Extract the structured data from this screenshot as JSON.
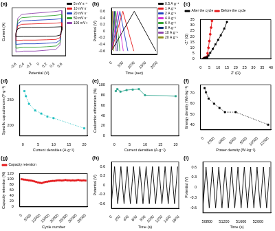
{
  "chart_data": [
    {
      "type": "line",
      "title": "(a)",
      "x_label": "Potential (V)",
      "y_label": "Current (A)",
      "x": [
        -0.6,
        -0.55,
        -0.45,
        -0.2,
        0.1,
        0.4,
        0.6,
        0.6,
        0.55,
        0.45,
        0.2,
        -0.1,
        -0.4,
        -0.6,
        -0.6
      ],
      "series": [
        {
          "name": "5 mV s⁻¹",
          "color": "#000000",
          "values": [
            -0.05,
            0.18,
            0.23,
            0.24,
            0.25,
            0.26,
            0.28,
            0.08,
            -0.18,
            -0.23,
            -0.24,
            -0.25,
            -0.25,
            -0.26,
            -0.05
          ]
        },
        {
          "name": "10 mV s⁻¹",
          "color": "#e41a1c",
          "values": [
            -0.09,
            0.32,
            0.41,
            0.43,
            0.45,
            0.47,
            0.5,
            0.14,
            -0.32,
            -0.41,
            -0.43,
            -0.45,
            -0.45,
            -0.47,
            -0.09
          ]
        },
        {
          "name": "20 mV s⁻¹",
          "color": "#1f3fbf",
          "values": [
            -0.13,
            0.46,
            0.59,
            0.62,
            0.65,
            0.68,
            0.72,
            0.2,
            -0.46,
            -0.59,
            -0.62,
            -0.65,
            -0.65,
            -0.68,
            -0.13
          ]
        },
        {
          "name": "50 mV s⁻¹",
          "color": "#2ca02c",
          "values": [
            -0.17,
            0.6,
            0.77,
            0.81,
            0.85,
            0.89,
            0.94,
            0.26,
            -0.6,
            -0.77,
            -0.81,
            -0.85,
            -0.85,
            -0.89,
            -0.17
          ]
        },
        {
          "name": "100 mV s⁻¹",
          "color": "#8e44ad",
          "values": [
            -0.21,
            0.74,
            0.95,
            1.0,
            1.05,
            1.1,
            1.16,
            0.32,
            -0.74,
            -0.95,
            -1.0,
            -1.05,
            -1.05,
            -1.1,
            -0.21
          ]
        }
      ],
      "xlim": [
        -0.7,
        0.7
      ],
      "xticks": [
        -0.6,
        -0.4,
        -0.2,
        0,
        0.2,
        0.4,
        0.6
      ],
      "ylim": [
        -1.3,
        1.3
      ],
      "tick_labels": "x",
      "grid": false,
      "legend": "right",
      "line_style": "solid"
    },
    {
      "type": "line",
      "title": "(b)",
      "x_label": "Time (sec)",
      "y_label": "Potential (V)",
      "series": [
        {
          "name": "0.5 A g⁻¹",
          "color": "#000000",
          "x": [
            0,
            1000,
            1950
          ],
          "values": [
            -0.6,
            0.6,
            -0.6
          ]
        },
        {
          "name": "1 A g⁻¹",
          "color": "#e41a1c",
          "x": [
            0,
            500,
            980
          ],
          "values": [
            -0.6,
            0.6,
            -0.6
          ]
        },
        {
          "name": "2 A g⁻¹",
          "color": "#1f3fbf",
          "x": [
            0,
            370,
            720
          ],
          "values": [
            -0.6,
            0.6,
            -0.6
          ]
        },
        {
          "name": "4 A g⁻¹",
          "color": "#d62fd6",
          "x": [
            0,
            270,
            520
          ],
          "values": [
            -0.6,
            0.6,
            -0.6
          ]
        },
        {
          "name": "6 A g⁻¹",
          "color": "#2ca02c",
          "x": [
            0,
            190,
            370
          ],
          "values": [
            -0.6,
            0.6,
            -0.6
          ]
        },
        {
          "name": "8 A g⁻¹",
          "color": "#0b2a6f",
          "x": [
            0,
            140,
            270
          ],
          "values": [
            -0.6,
            0.6,
            -0.6
          ]
        },
        {
          "name": "10 A g⁻¹",
          "color": "#8e44ad",
          "x": [
            0,
            110,
            210
          ],
          "values": [
            -0.6,
            0.6,
            -0.6
          ]
        },
        {
          "name": "20 A g⁻¹",
          "color": "#8c8c1a",
          "x": [
            0,
            50,
            95
          ],
          "values": [
            -0.6,
            0.6,
            -0.6
          ]
        }
      ],
      "xlim": [
        0,
        2000
      ],
      "xticks": [
        0,
        500,
        1000,
        1500,
        2000
      ],
      "ylim": [
        -0.7,
        0.7
      ],
      "yticks": [
        -0.6,
        -0.4,
        -0.2,
        0,
        0.2,
        0.4,
        0.6
      ],
      "grid": false,
      "legend": "right",
      "line_style": "solid"
    },
    {
      "type": "line",
      "title": "(c)",
      "x_label": "Z' (Ω)",
      "y_label": "-Z'' (Ω)",
      "series": [
        {
          "name": "After the cycle",
          "color": "#000000",
          "marker": "square",
          "x": [
            1.5,
            2.1,
            2.8,
            3.3,
            3.8,
            4.5,
            5.5,
            7,
            8.5,
            10,
            11.5,
            13.5,
            15
          ],
          "values": [
            0.1,
            0.9,
            1.1,
            1.0,
            1.5,
            3,
            5.5,
            9,
            13,
            17,
            21,
            27,
            33
          ]
        },
        {
          "name": "Before the cycle",
          "color": "#e41a1c",
          "marker": "circle",
          "x": [
            1.5,
            2.0,
            2.6,
            3.0,
            3.3,
            3.6,
            4.0,
            4.5,
            5.0,
            5.5,
            6.0,
            6.5
          ],
          "values": [
            0.1,
            0.8,
            1.0,
            0.8,
            1.0,
            2,
            5,
            10,
            16,
            22,
            28,
            34
          ]
        }
      ],
      "xlim": [
        0,
        40
      ],
      "xticks": [
        0,
        5,
        10,
        15,
        20,
        25,
        30,
        35,
        40
      ],
      "ylim": [
        0,
        35
      ],
      "yticks": [
        0,
        5,
        10,
        15,
        20,
        25,
        30,
        35
      ],
      "grid": false,
      "legend": "top",
      "line_style": "solid"
    },
    {
      "type": "line",
      "title": "(d)",
      "x_label": "Current densities (A·g⁻¹)",
      "y_label": "Specific capacitances (F·g⁻¹)",
      "x": [
        0.5,
        1,
        2,
        4,
        6,
        8,
        10,
        20
      ],
      "series": [
        {
          "color": "#1fbfbf",
          "marker": "square",
          "line_style": "dotted",
          "values": [
            268,
            258,
            243,
            230,
            224,
            218,
            215,
            195
          ]
        }
      ],
      "xlim": [
        -1,
        21
      ],
      "xticks": [
        0,
        5,
        10,
        15,
        20
      ],
      "ylim": [
        180,
        280
      ],
      "yticks": [
        200,
        250
      ],
      "grid": false
    },
    {
      "type": "line",
      "title": "(e)",
      "x_label": "Current densities (A·g⁻¹)",
      "y_label": "Coulombic efficiencies (%)",
      "x": [
        0.5,
        1,
        2,
        4,
        6,
        8,
        10,
        20
      ],
      "series": [
        {
          "color": "#2ca58d",
          "marker": "square",
          "line_style": "solid",
          "values": [
            88,
            92,
            87,
            90,
            91,
            92,
            80,
            78
          ]
        }
      ],
      "xlim": [
        -1,
        21
      ],
      "xticks": [
        0,
        5,
        10,
        15,
        20
      ],
      "ylim": [
        0,
        100
      ],
      "yticks": [
        0,
        20,
        40,
        60,
        80,
        100
      ],
      "grid": false
    },
    {
      "type": "line",
      "title": "(f)",
      "x_label": "Power density (W·kg⁻¹)",
      "y_label": "Energy density (Wh·kg⁻¹)",
      "x": [
        250,
        500,
        1000,
        2000,
        3000,
        4000,
        6000,
        12000
      ],
      "series": [
        {
          "color": "#000000",
          "marker": "square",
          "line_style": "dotted",
          "values": [
            75,
            71,
            65,
            60,
            56,
            52,
            52,
            40
          ]
        }
      ],
      "xlim": [
        -500,
        12500
      ],
      "xticks": [
        0,
        2000,
        4000,
        6000,
        8000,
        10000,
        12000
      ],
      "ylim": [
        35,
        78
      ],
      "yticks": [
        40,
        50,
        60,
        70
      ],
      "grid": false
    },
    {
      "type": "line",
      "title": "(g)",
      "x_label": "Cycle number",
      "y_label": "Capacity retention (%)",
      "x": [
        0,
        1000,
        2000,
        3000,
        4000,
        5000,
        6000,
        7000,
        8000,
        9000,
        10000,
        11000,
        12000,
        13000,
        14000,
        15000,
        16000,
        17000,
        18000,
        19000,
        20000,
        21000,
        22000,
        23000,
        24000,
        25000,
        26000,
        27000,
        28000,
        29000,
        30000,
        31000,
        32000,
        33000,
        34000,
        35000
      ],
      "series": [
        {
          "name": "Capacity retention",
          "color": "#e41a1c",
          "marker": "square",
          "line_style": "solid",
          "values": [
            100,
            99,
            98,
            97,
            96,
            95,
            94,
            92,
            90,
            88,
            87,
            86,
            88,
            90,
            91,
            92,
            93,
            94,
            94,
            95,
            96,
            96,
            95,
            96,
            97,
            96,
            96,
            95,
            96,
            95,
            96,
            97,
            96,
            95,
            96,
            95
          ]
        }
      ],
      "xlim": [
        -1000,
        36000
      ],
      "xticks": [
        0,
        5000,
        10000,
        15000,
        20000,
        25000,
        30000,
        35000
      ],
      "ylim": [
        0,
        120
      ],
      "yticks": [
        0,
        20,
        40,
        60,
        80,
        100,
        120
      ],
      "grid": false,
      "legend": "top"
    },
    {
      "type": "line",
      "title": "(h)",
      "x_label": "Time (s)",
      "y_label": "Potential (V)",
      "x": [
        0,
        75,
        150,
        225,
        300,
        375,
        450,
        525,
        600,
        675,
        750,
        825,
        900,
        975,
        1050,
        1125,
        1200,
        1275,
        1350,
        1425,
        1500,
        1575
      ],
      "series": [
        {
          "color": "#000000",
          "line_style": "solid",
          "values": [
            -0.6,
            0.6,
            -0.6,
            0.6,
            -0.6,
            0.6,
            -0.6,
            0.6,
            -0.6,
            0.6,
            -0.6,
            0.6,
            -0.6,
            0.6,
            -0.6,
            0.6,
            -0.6,
            0.6,
            -0.6,
            0.6,
            -0.6,
            0.6
          ]
        }
      ],
      "xlim": [
        0,
        1600
      ],
      "xticks": [
        0,
        200,
        400,
        600,
        800,
        1000,
        1200,
        1400,
        1600
      ],
      "ylim": [
        -0.75,
        0.75
      ],
      "yticks": [
        -0.6,
        -0.3,
        0,
        0.3,
        0.6
      ],
      "grid": false
    },
    {
      "type": "line",
      "title": "(i)",
      "x_label": "Time (s)",
      "y_label": "Potential (V)",
      "x": [
        50700,
        50775,
        50850,
        50925,
        51000,
        51075,
        51150,
        51225,
        51300,
        51375,
        51450,
        51525,
        51600,
        51675,
        51750,
        51825,
        51900,
        51975,
        52050,
        52125,
        52200,
        52275
      ],
      "series": [
        {
          "color": "#000000",
          "line_style": "solid",
          "values": [
            -0.6,
            0.6,
            -0.6,
            0.6,
            -0.6,
            0.6,
            -0.6,
            0.6,
            -0.6,
            0.6,
            -0.6,
            0.6,
            -0.6,
            0.6,
            -0.6,
            0.6,
            -0.6,
            0.6,
            -0.6,
            0.6,
            -0.6,
            0.6
          ]
        }
      ],
      "xlim": [
        50700,
        52300
      ],
      "xticks": [
        50800,
        51200,
        51600,
        52000
      ],
      "ylim": [
        -0.75,
        0.75
      ],
      "yticks": [
        -0.6,
        -0.3,
        0,
        0.3,
        0.6
      ],
      "grid": false
    }
  ]
}
